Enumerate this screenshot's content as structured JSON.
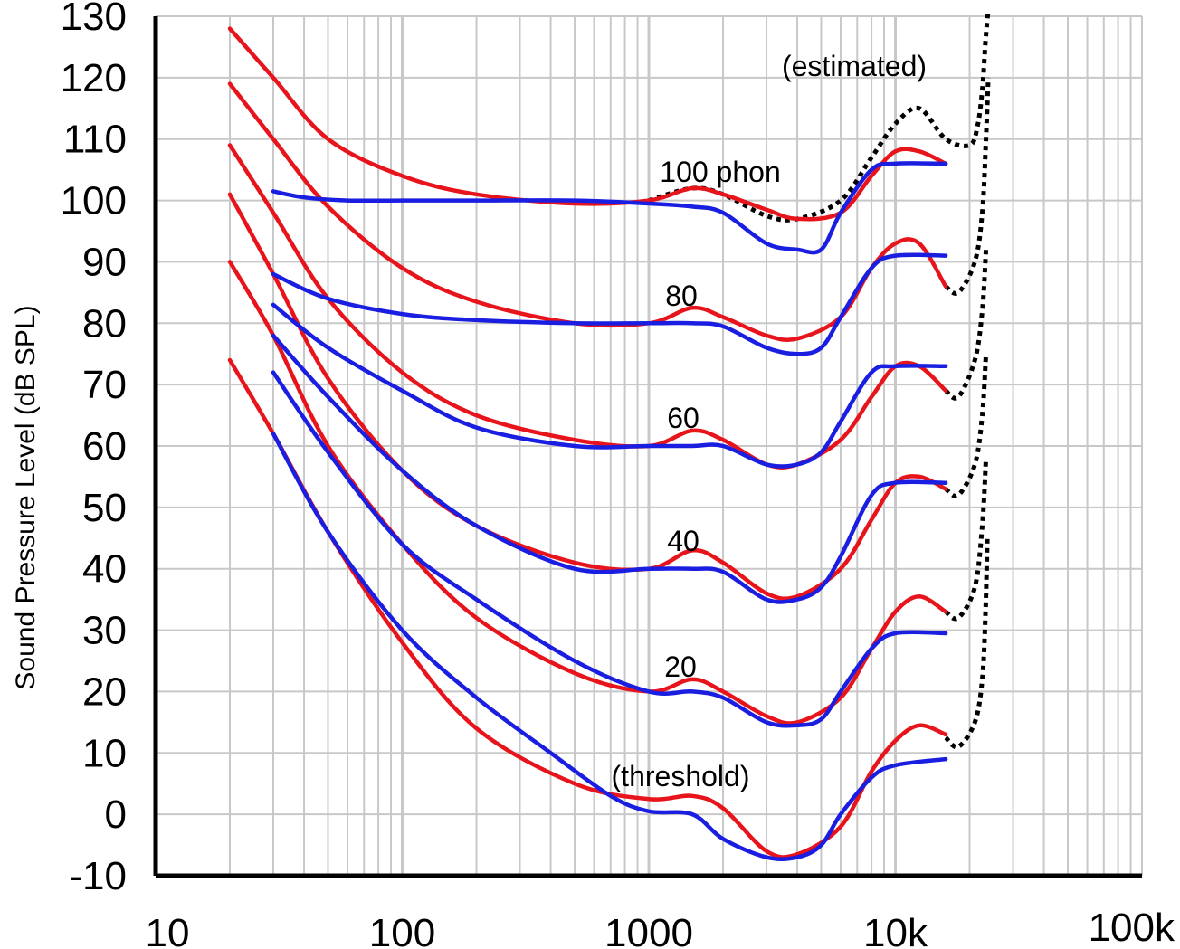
{
  "chart_data": {
    "type": "line",
    "xscale": "log",
    "xlim": [
      10,
      100000
    ],
    "ylim": [
      -10,
      130
    ],
    "grid": true,
    "ylabel": "Sound Pressure Level (dB SPL)",
    "x_tick_labels": [
      "10",
      "100",
      "1000",
      "10k",
      "100k"
    ],
    "y_tick_labels": [
      "130",
      "120",
      "110",
      "100",
      "90",
      "80",
      "70",
      "60",
      "50",
      "40",
      "30",
      "20",
      "10",
      "0",
      "-10"
    ],
    "annotations": [
      "(estimated)",
      "100 phon",
      "80",
      "60",
      "40",
      "20",
      "(threshold)"
    ],
    "colors": {
      "red": "#e8141c",
      "blue": "#1a1ee0",
      "dotted": "#000000",
      "grid": "#c8c8c8"
    },
    "series": [
      {
        "color": "red",
        "style": "solid",
        "x": [
          20,
          30,
          50,
          100,
          200,
          500,
          1000,
          1500,
          2000,
          3000,
          4000,
          6000,
          8000,
          10000,
          12500,
          16000
        ],
        "y": [
          128,
          120,
          110,
          104,
          101,
          99.5,
          100,
          102,
          101,
          98.5,
          97,
          98,
          104,
          108,
          108,
          106
        ]
      },
      {
        "color": "red",
        "style": "solid",
        "x": [
          20,
          30,
          50,
          100,
          200,
          500,
          1000,
          1500,
          2000,
          3000,
          4000,
          6000,
          8000,
          10000,
          12500,
          16000
        ],
        "y": [
          119,
          110,
          99,
          89,
          83.5,
          80,
          80,
          82.5,
          81,
          78,
          77.5,
          81,
          89,
          93,
          93,
          86
        ]
      },
      {
        "color": "red",
        "style": "solid",
        "x": [
          20,
          30,
          50,
          100,
          200,
          500,
          1000,
          1500,
          2000,
          3000,
          4000,
          6000,
          8000,
          10000,
          12500,
          16000
        ],
        "y": [
          109,
          98,
          84,
          72,
          65,
          61,
          60,
          62.5,
          61,
          57,
          57,
          61,
          68,
          73,
          73,
          69
        ]
      },
      {
        "color": "red",
        "style": "solid",
        "x": [
          20,
          30,
          50,
          100,
          200,
          500,
          1000,
          1500,
          2000,
          3000,
          4000,
          6000,
          8000,
          10000,
          12500,
          16000
        ],
        "y": [
          101,
          88,
          71,
          56,
          47,
          41,
          40,
          43,
          41,
          36,
          35.5,
          40,
          48,
          54,
          55,
          53
        ]
      },
      {
        "color": "red",
        "style": "solid",
        "x": [
          20,
          30,
          50,
          100,
          200,
          500,
          1000,
          1500,
          2000,
          3000,
          4000,
          6000,
          8000,
          10000,
          12500,
          16000
        ],
        "y": [
          90,
          78,
          60,
          44,
          32,
          23,
          20,
          22,
          20,
          16,
          15,
          19,
          27,
          33,
          35.5,
          33
        ]
      },
      {
        "color": "red",
        "style": "solid",
        "x": [
          20,
          30,
          50,
          100,
          200,
          500,
          1000,
          1500,
          2000,
          3000,
          4000,
          6000,
          8000,
          10000,
          12500,
          16000
        ],
        "y": [
          74,
          62,
          46,
          28,
          14,
          5,
          2.5,
          3,
          1,
          -6,
          -6.5,
          -2,
          7,
          12,
          14.5,
          13
        ]
      },
      {
        "color": "blue",
        "style": "solid",
        "x": [
          30,
          40,
          60,
          100,
          200,
          500,
          1000,
          1500,
          2000,
          3000,
          4000,
          5000,
          6000,
          8000,
          10000,
          16000
        ],
        "y": [
          101.5,
          100.5,
          100,
          100,
          100,
          100,
          99.5,
          99,
          98,
          93,
          92,
          92,
          98,
          105,
          106,
          106
        ]
      },
      {
        "color": "blue",
        "style": "solid",
        "x": [
          30,
          50,
          100,
          200,
          500,
          1000,
          1500,
          2000,
          3000,
          4000,
          5000,
          6000,
          8000,
          10000,
          16000
        ],
        "y": [
          88,
          84,
          81.5,
          80.5,
          80,
          80,
          80,
          79.5,
          76,
          75,
          76,
          81,
          89,
          91,
          91
        ]
      },
      {
        "color": "blue",
        "style": "solid",
        "x": [
          30,
          50,
          100,
          200,
          500,
          1000,
          1500,
          2000,
          3000,
          4000,
          5000,
          6000,
          8000,
          10000,
          16000
        ],
        "y": [
          83,
          76,
          69,
          63,
          60,
          60,
          60,
          60,
          57,
          57,
          59,
          64,
          72,
          73,
          73
        ]
      },
      {
        "color": "blue",
        "style": "solid",
        "x": [
          30,
          50,
          100,
          200,
          500,
          1000,
          1500,
          2000,
          3000,
          4000,
          5000,
          6000,
          8000,
          10000,
          16000
        ],
        "y": [
          78,
          68,
          56,
          47,
          40,
          40,
          40,
          39.5,
          35,
          35,
          37,
          42,
          52,
          54,
          54
        ]
      },
      {
        "color": "blue",
        "style": "solid",
        "x": [
          30,
          50,
          100,
          200,
          500,
          1000,
          1500,
          2000,
          3000,
          4000,
          5000,
          6000,
          8000,
          10000,
          16000
        ],
        "y": [
          72,
          59,
          44,
          35,
          25,
          20,
          20,
          19,
          15,
          14.5,
          15.5,
          20,
          27,
          29.5,
          29.5
        ]
      },
      {
        "color": "blue",
        "style": "solid",
        "x": [
          30,
          50,
          100,
          200,
          400,
          700,
          1000,
          1500,
          2000,
          3000,
          4000,
          5000,
          6000,
          8000,
          10000,
          16000
        ],
        "y": [
          62,
          46,
          30,
          19,
          10,
          3,
          0.5,
          0,
          -4,
          -7,
          -7,
          -5,
          0,
          6,
          8,
          9
        ]
      },
      {
        "color": "dotted",
        "style": "dotted",
        "x": [
          1000,
          1500,
          2000,
          3000,
          4000,
          6000,
          8000,
          10000,
          12500,
          16000,
          20000,
          21500,
          22500,
          23200,
          23800
        ],
        "y": [
          100,
          102,
          101,
          97.5,
          97,
          100,
          107,
          112.5,
          115,
          110,
          109,
          112,
          118,
          126,
          131
        ]
      },
      {
        "color": "dotted",
        "style": "dotted",
        "x": [
          16000,
          18000,
          21000,
          22500,
          23300,
          23800
        ],
        "y": [
          86,
          85,
          90,
          98,
          110,
          120
        ]
      },
      {
        "color": "dotted",
        "style": "dotted",
        "x": [
          16000,
          18000,
          21000,
          22500,
          23300
        ],
        "y": [
          69,
          68,
          74,
          82,
          92
        ]
      },
      {
        "color": "dotted",
        "style": "dotted",
        "x": [
          16000,
          18000,
          21000,
          22500,
          23300
        ],
        "y": [
          53,
          52,
          57,
          65,
          75
        ]
      },
      {
        "color": "dotted",
        "style": "dotted",
        "x": [
          16000,
          18000,
          21000,
          22500,
          23300
        ],
        "y": [
          33,
          32,
          37,
          47,
          58
        ]
      },
      {
        "color": "dotted",
        "style": "dotted",
        "x": [
          16000,
          18000,
          21000,
          22500,
          23200,
          23600
        ],
        "y": [
          12.5,
          11,
          15,
          22,
          33,
          45
        ]
      }
    ]
  }
}
